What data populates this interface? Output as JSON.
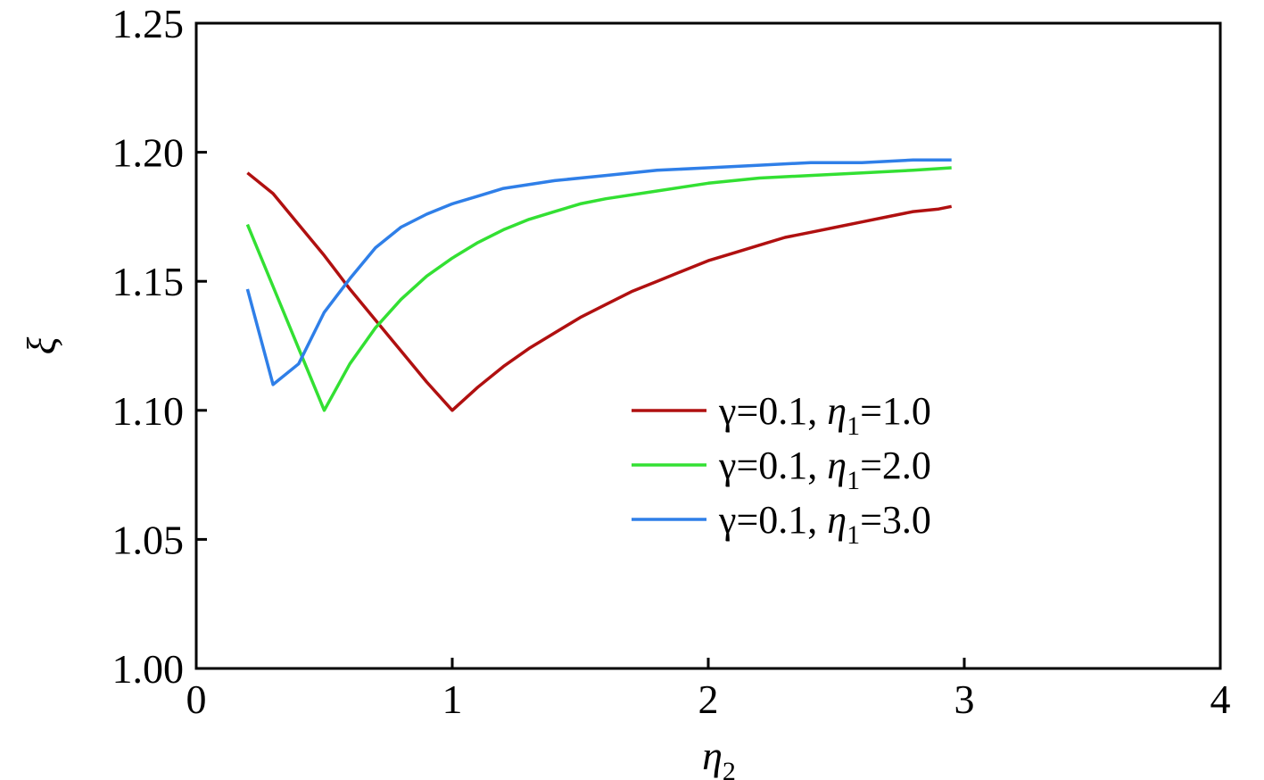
{
  "chart_data": {
    "type": "line",
    "xlabel": {
      "main": "η",
      "sub": "2"
    },
    "ylabel": "ξ",
    "xlim": [
      0,
      4
    ],
    "ylim": [
      1.0,
      1.25
    ],
    "xticks": [
      "0",
      "1",
      "2",
      "3",
      "4"
    ],
    "yticks": [
      "1.00",
      "1.05",
      "1.10",
      "1.15",
      "1.20",
      "1.25"
    ],
    "legend_position": "right-center",
    "grid": false,
    "series": [
      {
        "name": {
          "pre": "γ=0.1, ",
          "sym": "η",
          "sub": "1",
          "post": "=1.0"
        },
        "color": "#b01010",
        "x": [
          0.2,
          0.3,
          0.4,
          0.5,
          0.6,
          0.7,
          0.8,
          0.9,
          1.0,
          1.1,
          1.2,
          1.3,
          1.4,
          1.5,
          1.6,
          1.7,
          1.8,
          1.9,
          2.0,
          2.1,
          2.2,
          2.3,
          2.4,
          2.5,
          2.6,
          2.7,
          2.8,
          2.9,
          2.95
        ],
        "y": [
          1.192,
          1.184,
          1.172,
          1.16,
          1.147,
          1.135,
          1.123,
          1.111,
          1.1,
          1.109,
          1.117,
          1.124,
          1.13,
          1.136,
          1.141,
          1.146,
          1.15,
          1.154,
          1.158,
          1.161,
          1.164,
          1.167,
          1.169,
          1.171,
          1.173,
          1.175,
          1.177,
          1.178,
          1.179
        ]
      },
      {
        "name": {
          "pre": "γ=0.1, ",
          "sym": "η",
          "sub": "1",
          "post": "=2.0"
        },
        "color": "#33e033",
        "x": [
          0.2,
          0.3,
          0.4,
          0.5,
          0.6,
          0.7,
          0.8,
          0.9,
          1.0,
          1.1,
          1.2,
          1.3,
          1.4,
          1.5,
          1.6,
          1.8,
          2.0,
          2.2,
          2.4,
          2.6,
          2.8,
          2.95
        ],
        "y": [
          1.172,
          1.148,
          1.124,
          1.1,
          1.118,
          1.132,
          1.143,
          1.152,
          1.159,
          1.165,
          1.17,
          1.174,
          1.177,
          1.18,
          1.182,
          1.185,
          1.188,
          1.19,
          1.191,
          1.192,
          1.193,
          1.194
        ]
      },
      {
        "name": {
          "pre": "γ=0.1, ",
          "sym": "η",
          "sub": "1",
          "post": "=3.0"
        },
        "color": "#2f7fe8",
        "x": [
          0.2,
          0.3,
          0.4,
          0.5,
          0.6,
          0.7,
          0.8,
          0.9,
          1.0,
          1.1,
          1.2,
          1.4,
          1.6,
          1.8,
          2.0,
          2.2,
          2.4,
          2.6,
          2.8,
          2.95
        ],
        "y": [
          1.147,
          1.11,
          1.118,
          1.138,
          1.151,
          1.163,
          1.171,
          1.176,
          1.18,
          1.183,
          1.186,
          1.189,
          1.191,
          1.193,
          1.194,
          1.195,
          1.196,
          1.196,
          1.197,
          1.197
        ]
      }
    ]
  }
}
